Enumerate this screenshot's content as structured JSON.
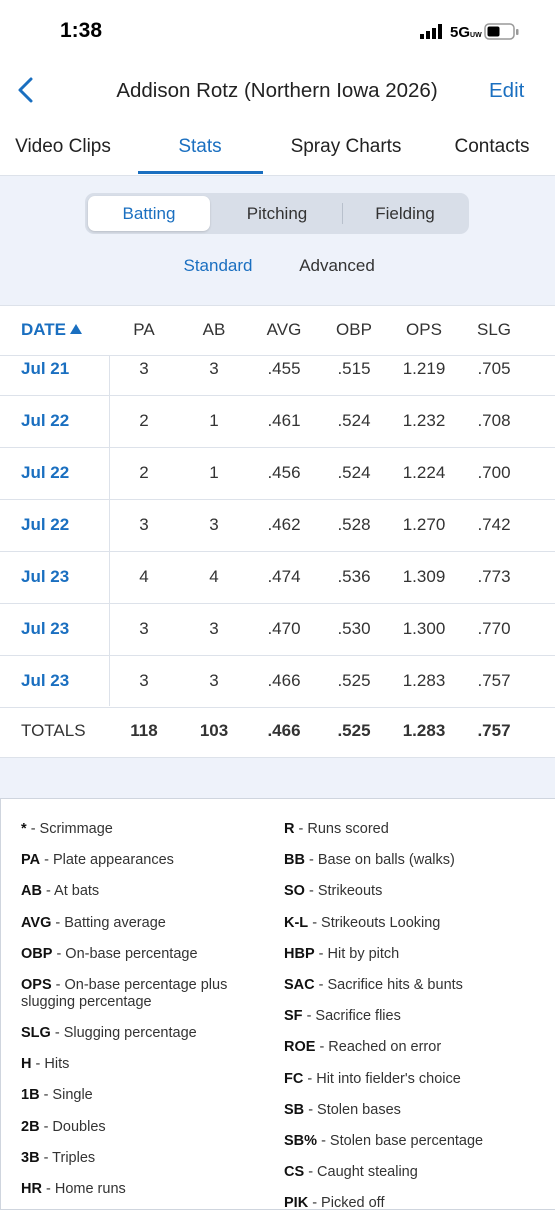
{
  "status": {
    "time": "1:38",
    "network": "5G",
    "network_sub": "UW"
  },
  "nav": {
    "title": "Addison Rotz (Northern Iowa 2026)",
    "edit": "Edit"
  },
  "tabs": [
    "Video Clips",
    "Stats",
    "Spray Charts",
    "Contacts"
  ],
  "segments": [
    "Batting",
    "Pitching",
    "Fielding"
  ],
  "subtabs": [
    "Standard",
    "Advanced"
  ],
  "table": {
    "header": [
      "DATE",
      "PA",
      "AB",
      "AVG",
      "OBP",
      "OPS",
      "SLG"
    ],
    "rows": [
      [
        "Jul 21",
        "3",
        "3",
        ".455",
        ".515",
        "1.219",
        ".705"
      ],
      [
        "Jul 22",
        "2",
        "1",
        ".461",
        ".524",
        "1.232",
        ".708"
      ],
      [
        "Jul 22",
        "2",
        "1",
        ".456",
        ".524",
        "1.224",
        ".700"
      ],
      [
        "Jul 22",
        "3",
        "3",
        ".462",
        ".528",
        "1.270",
        ".742"
      ],
      [
        "Jul 23",
        "4",
        "4",
        ".474",
        ".536",
        "1.309",
        ".773"
      ],
      [
        "Jul 23",
        "3",
        "3",
        ".470",
        ".530",
        "1.300",
        ".770"
      ],
      [
        "Jul 23",
        "3",
        "3",
        ".466",
        ".525",
        "1.283",
        ".757"
      ]
    ],
    "totals": [
      "TOTALS",
      "118",
      "103",
      ".466",
      ".525",
      "1.283",
      ".757"
    ]
  },
  "legend": {
    "left": [
      {
        "key": "*",
        "desc": "- Scrimmage"
      },
      {
        "key": "PA",
        "desc": "- Plate appearances"
      },
      {
        "key": "AB",
        "desc": "- At bats"
      },
      {
        "key": "AVG",
        "desc": "- Batting average"
      },
      {
        "key": "OBP",
        "desc": "- On-base percentage"
      },
      {
        "key": "OPS",
        "desc": "- On-base percentage plus slugging percentage"
      },
      {
        "key": "SLG",
        "desc": "- Slugging percentage"
      },
      {
        "key": "H",
        "desc": "- Hits"
      },
      {
        "key": "1B",
        "desc": "- Single"
      },
      {
        "key": "2B",
        "desc": "- Doubles"
      },
      {
        "key": "3B",
        "desc": "- Triples"
      },
      {
        "key": "HR",
        "desc": "- Home runs"
      }
    ],
    "right": [
      {
        "key": "R",
        "desc": "- Runs scored"
      },
      {
        "key": "BB",
        "desc": "- Base on balls (walks)"
      },
      {
        "key": "SO",
        "desc": "- Strikeouts"
      },
      {
        "key": "K-L",
        "desc": "- Strikeouts Looking"
      },
      {
        "key": "HBP",
        "desc": "- Hit by pitch"
      },
      {
        "key": "SAC",
        "desc": "- Sacrifice hits & bunts"
      },
      {
        "key": "SF",
        "desc": "- Sacrifice flies"
      },
      {
        "key": "ROE",
        "desc": "- Reached on error"
      },
      {
        "key": "FC",
        "desc": "- Hit into fielder's choice"
      },
      {
        "key": "SB",
        "desc": "- Stolen bases"
      },
      {
        "key": "SB%",
        "desc": "- Stolen base percentage"
      },
      {
        "key": "CS",
        "desc": "- Caught stealing"
      },
      {
        "key": "PIK",
        "desc": "- Picked off"
      }
    ]
  }
}
